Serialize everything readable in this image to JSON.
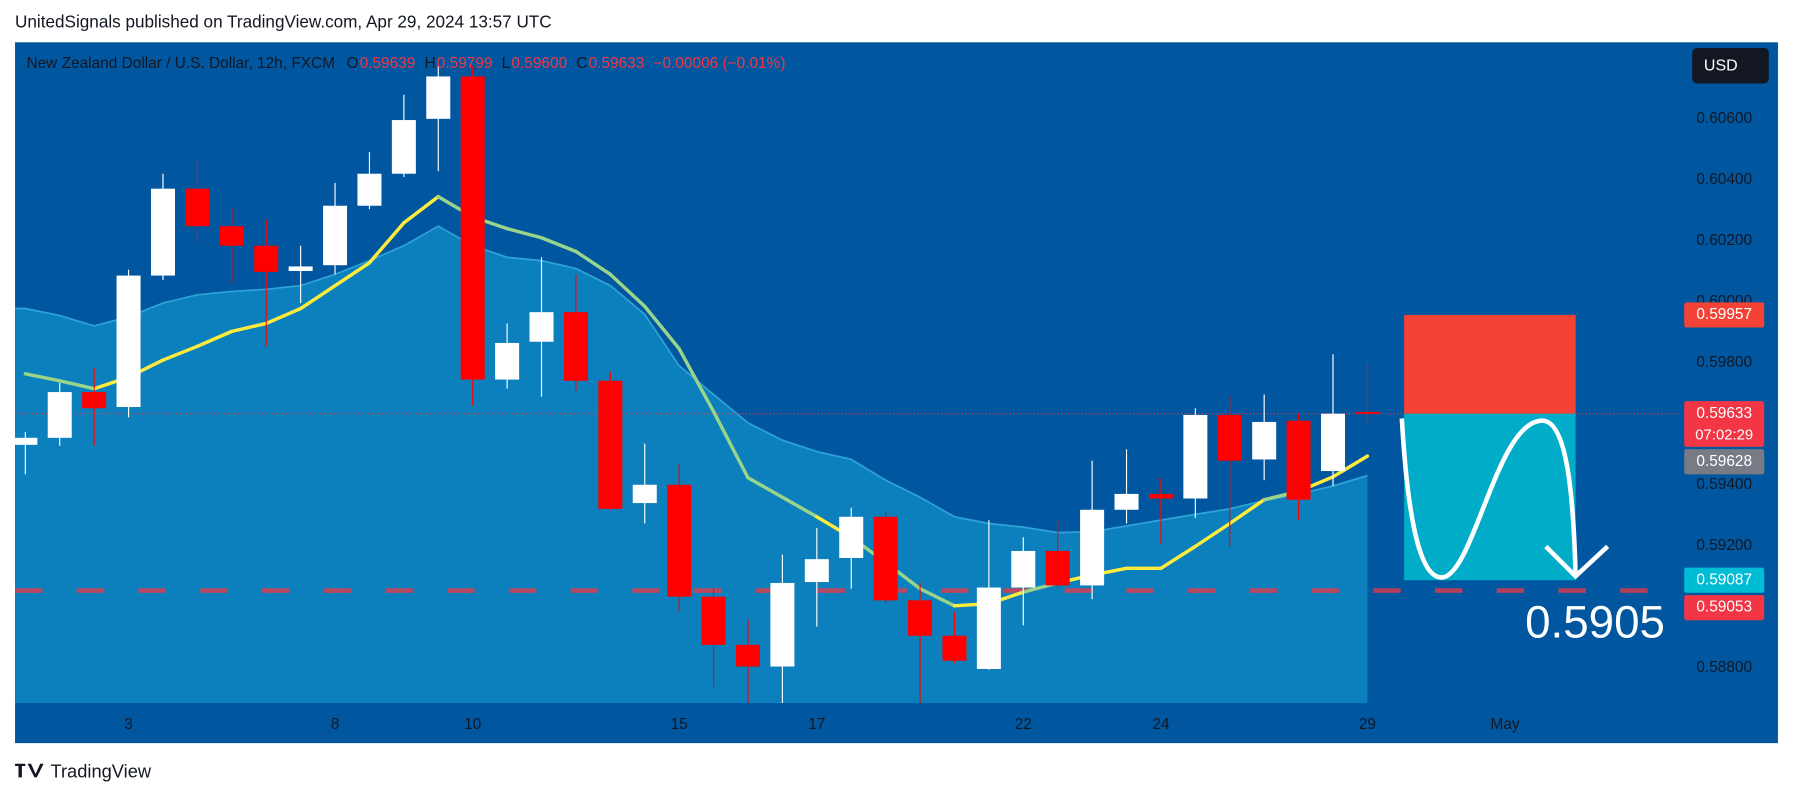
{
  "header": {
    "text": "UnitedSignals published on TradingView.com, Apr 29, 2024 13:57 UTC"
  },
  "footer": {
    "brand": "TradingView"
  },
  "chart_data": {
    "type": "candlestick",
    "title": "New Zealand Dollar / U.S. Dollar, 12h, FXCM",
    "legend": [
      {
        "key": "O",
        "text": "0.59639"
      },
      {
        "key": "H",
        "text": "0.59799"
      },
      {
        "key": "L",
        "text": "0.59600"
      },
      {
        "key": "C",
        "text": "0.59633"
      }
    ],
    "change": "−0.00006 (−0.01%)",
    "currency": "USD",
    "categories": [
      null,
      null,
      null,
      "3",
      null,
      null,
      null,
      null,
      null,
      "8",
      null,
      null,
      null,
      "10",
      null,
      null,
      null,
      null,
      null,
      "15",
      null,
      null,
      null,
      "17",
      null,
      null,
      null,
      null,
      null,
      "22",
      null,
      null,
      null,
      "24",
      null,
      null,
      null,
      null,
      null,
      "29",
      null,
      null,
      null,
      "May"
    ],
    "open": [
      0.59531,
      0.59554,
      0.59704,
      0.59655,
      0.60086,
      0.60371,
      0.60248,
      0.60184,
      0.60101,
      0.6012,
      0.60315,
      0.6042,
      0.606,
      0.60739,
      0.59745,
      0.59869,
      0.59966,
      0.59741,
      0.5934,
      0.594,
      0.59033,
      0.58875,
      0.58804,
      0.59081,
      0.5916,
      0.59295,
      0.59021,
      0.58905,
      0.58796,
      0.59063,
      0.59183,
      0.5907,
      0.59318,
      0.5937,
      0.59355,
      0.59629,
      0.59483,
      0.5961,
      0.59445,
      0.59639,
      null,
      null,
      null,
      null
    ],
    "high": [
      0.59573,
      0.59734,
      0.59783,
      0.60105,
      0.6042,
      0.60465,
      0.60308,
      0.6027,
      0.60184,
      0.6039,
      0.60491,
      0.60679,
      0.60773,
      0.60773,
      0.59929,
      0.60146,
      0.6009,
      0.59771,
      0.59535,
      0.59468,
      0.59059,
      0.58958,
      0.59171,
      0.59258,
      0.59325,
      0.5931,
      0.59078,
      0.58984,
      0.59284,
      0.59228,
      0.59284,
      0.59479,
      0.59516,
      0.59423,
      0.59651,
      0.59693,
      0.59696,
      0.59633,
      0.59828,
      0.59799,
      null,
      null,
      null,
      null
    ],
    "low": [
      0.59434,
      0.59528,
      0.59528,
      0.59621,
      0.60071,
      0.60195,
      0.6006,
      0.59854,
      0.59996,
      0.6009,
      0.60304,
      0.60409,
      0.60428,
      0.59659,
      0.59715,
      0.59689,
      0.59708,
      0.59318,
      0.59273,
      0.58984,
      0.58736,
      0.58684,
      0.58684,
      0.58935,
      0.59059,
      0.5901,
      0.58684,
      0.58815,
      0.58793,
      0.58939,
      0.59063,
      0.59025,
      0.59273,
      0.59205,
      0.59291,
      0.59198,
      0.59415,
      0.59284,
      0.59396,
      0.596,
      null,
      null,
      null,
      null
    ],
    "close": [
      0.59554,
      0.59704,
      0.59651,
      0.60086,
      0.60371,
      0.60248,
      0.60184,
      0.60098,
      0.60116,
      0.60315,
      0.6042,
      0.60596,
      0.60739,
      0.59745,
      0.59865,
      0.59966,
      0.59741,
      0.59321,
      0.594,
      0.59033,
      0.58875,
      0.58804,
      0.59078,
      0.59156,
      0.59295,
      0.59021,
      0.58905,
      0.58823,
      0.59063,
      0.59183,
      0.5907,
      0.59318,
      0.5937,
      0.59355,
      0.59629,
      0.59479,
      0.59606,
      0.59351,
      0.59633,
      0.59633,
      null,
      null,
      null,
      null
    ],
    "up_color": "#ffffff",
    "down_color": "#ff0000",
    "ma_line": {
      "up_color": "#ffeb3b",
      "down_color": "#9ad48a",
      "values": [
        0.59764,
        0.59741,
        0.59715,
        0.59753,
        0.59809,
        0.59854,
        0.59903,
        0.59929,
        0.59978,
        0.60053,
        0.60128,
        0.60259,
        0.60345,
        0.60278,
        0.6024,
        0.6021,
        0.60165,
        0.6009,
        0.59985,
        0.59846,
        0.5964,
        0.59423,
        0.59359,
        0.59295,
        0.59228,
        0.59145,
        0.59059,
        0.59003,
        0.5901,
        0.59048,
        0.59078,
        0.59104,
        0.59126,
        0.59126,
        0.59198,
        0.59273,
        0.59351,
        0.59378,
        0.59426,
        0.59494,
        null,
        null,
        null,
        null
      ]
    },
    "ma_band": {
      "color": "#0b80bc",
      "edge_color": "#2fa3d6",
      "values": [
        0.59978,
        0.59955,
        0.59921,
        0.59951,
        0.59996,
        0.60023,
        0.60034,
        0.60041,
        0.60053,
        0.6009,
        0.60135,
        0.60184,
        0.60248,
        0.60184,
        0.60146,
        0.60135,
        0.60109,
        0.60053,
        0.59959,
        0.5979,
        0.59696,
        0.59603,
        0.59546,
        0.59509,
        0.59483,
        0.59415,
        0.59359,
        0.59295,
        0.59273,
        0.59261,
        0.59243,
        0.59246,
        0.59265,
        0.59284,
        0.59303,
        0.59321,
        0.59348,
        0.5937,
        0.59396,
        0.5943,
        null,
        null,
        null,
        null
      ]
    },
    "ylim": [
      0.58684,
      0.60851
    ],
    "yticks": [
      {
        "value": 0.588,
        "label": "0.58800"
      },
      {
        "value": 0.592,
        "label": "0.59200"
      },
      {
        "value": 0.594,
        "label": "0.59400"
      },
      {
        "value": 0.598,
        "label": "0.59800"
      },
      {
        "value": 0.6,
        "label": "0.60000"
      },
      {
        "value": 0.602,
        "label": "0.60200"
      },
      {
        "value": 0.604,
        "label": "0.60400"
      },
      {
        "value": 0.606,
        "label": "0.60600"
      }
    ],
    "levels": [
      {
        "value": 0.59053,
        "color": "#f23645",
        "style": "dashed"
      },
      {
        "value": 0.59633,
        "color": "#f23645",
        "style": "dotted"
      }
    ],
    "position": {
      "stop": 0.59957,
      "entry": 0.59633,
      "target": 0.59087,
      "stop_color": "#f44336",
      "target_color": "#00acc8"
    },
    "annotation": "0.5905",
    "price_labels": [
      {
        "value": 0.59957,
        "color": "#f44336"
      },
      {
        "value": 0.59633,
        "color": "#f23645",
        "sub": "07:02:29"
      },
      {
        "value": 0.59628,
        "color": "#787b86"
      },
      {
        "value": 0.59087,
        "color": "#00bcd4"
      },
      {
        "value": 0.59053,
        "color": "#f23645"
      }
    ]
  }
}
